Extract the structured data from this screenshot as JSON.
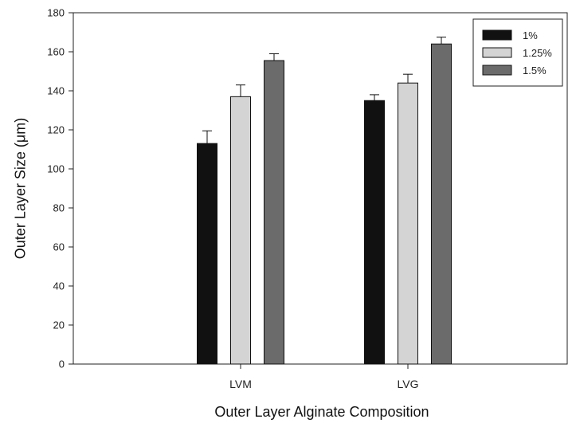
{
  "chart_data": {
    "type": "bar",
    "categories": [
      "LVM",
      "LVG"
    ],
    "series": [
      {
        "name": "1%",
        "values": [
          113,
          135
        ],
        "errors": [
          6.5,
          3
        ],
        "color": "#111111"
      },
      {
        "name": "1.25%",
        "values": [
          137,
          144
        ],
        "errors": [
          6,
          4.5
        ],
        "color": "#d4d4d4"
      },
      {
        "name": "1.5%",
        "values": [
          155.5,
          164
        ],
        "errors": [
          3.5,
          3.5
        ],
        "color": "#6b6b6b"
      }
    ],
    "xlabel": "Outer Layer Alginate Composition",
    "ylabel": "Outer Layer Size (μm)",
    "ylim": [
      0,
      180
    ],
    "yticks": [
      0,
      20,
      40,
      60,
      80,
      100,
      120,
      140,
      160,
      180
    ],
    "grid": false,
    "legend_position": "top-right"
  }
}
